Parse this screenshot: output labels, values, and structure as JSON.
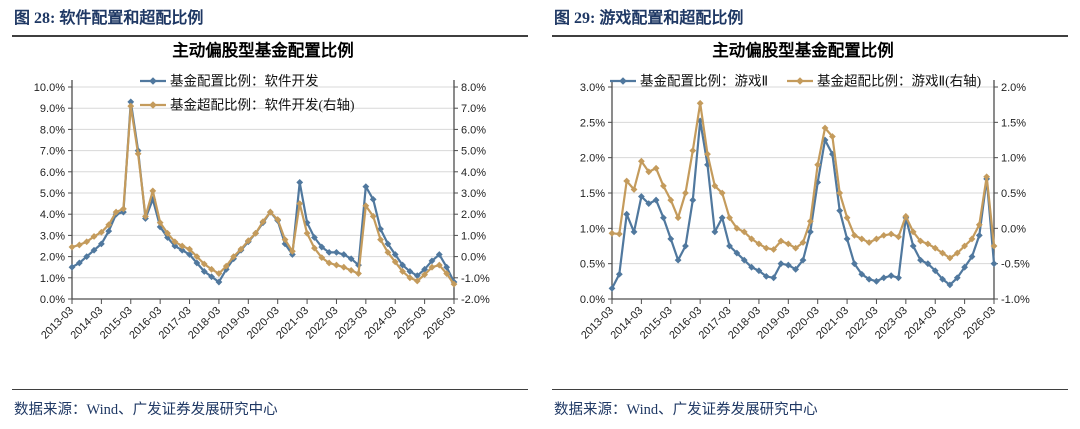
{
  "page": {
    "background": "#FFFFFF",
    "accent_navy": "#1F3864",
    "grid_color": "#D8D8D8",
    "axis_color": "#4d4d4d",
    "series_blue": "#50789E",
    "series_gold": "#C49B5C"
  },
  "figures": [
    {
      "figure_title": "图 28:  软件配置和超配比例",
      "source": "数据来源：Wind、广发证券发展研究中心"
    },
    {
      "figure_title": "图 29:  游戏配置和超配比例",
      "source": "数据来源：Wind、广发证券发展研究中心"
    }
  ],
  "chart_data": [
    {
      "type": "line",
      "title": "主动偏股型基金配置比例",
      "x_frequency": "quarterly",
      "x_tick_labels": [
        "2013-03",
        "2014-03",
        "2015-03",
        "2016-03",
        "2017-03",
        "2018-03",
        "2019-03",
        "2020-03",
        "2021-03",
        "2022-03",
        "2023-03",
        "2024-03",
        "2025-03",
        "2026-03"
      ],
      "left_axis": {
        "min": 0,
        "max": 10,
        "step": 1,
        "unit": "%"
      },
      "right_axis": {
        "min": -2,
        "max": 8,
        "step": 1,
        "unit": "%"
      },
      "grid": "horizontal",
      "legend": {
        "position": "top",
        "layout": "stacked"
      },
      "series": [
        {
          "name": "基金配置比例：软件开发",
          "axis": "left",
          "color": "#50789E",
          "marker": "diamond",
          "values": [
            1.5,
            1.7,
            2.0,
            2.3,
            2.6,
            3.2,
            4.0,
            4.1,
            9.3,
            7.0,
            3.8,
            4.7,
            3.4,
            2.9,
            2.5,
            2.3,
            2.1,
            1.7,
            1.3,
            1.05,
            0.8,
            1.4,
            1.9,
            2.3,
            2.7,
            3.1,
            3.6,
            4.1,
            3.7,
            2.6,
            2.1,
            5.5,
            3.6,
            2.9,
            2.45,
            2.2,
            2.2,
            2.1,
            1.9,
            1.6,
            5.3,
            4.7,
            3.3,
            2.6,
            2.1,
            1.6,
            1.3,
            1.1,
            1.4,
            1.8,
            2.1,
            1.5,
            0.8
          ]
        },
        {
          "name": "基金超配比例：软件开发(右轴)",
          "axis": "right",
          "color": "#C49B5C",
          "marker": "diamond",
          "values": [
            0.45,
            0.55,
            0.7,
            0.95,
            1.15,
            1.5,
            2.1,
            2.25,
            7.1,
            4.85,
            1.9,
            3.1,
            1.6,
            1.1,
            0.7,
            0.5,
            0.35,
            0.0,
            -0.35,
            -0.6,
            -0.8,
            -0.45,
            0.0,
            0.35,
            0.75,
            1.1,
            1.65,
            2.1,
            1.75,
            0.8,
            0.25,
            2.5,
            1.1,
            0.4,
            -0.05,
            -0.3,
            -0.4,
            -0.5,
            -0.65,
            -0.8,
            2.4,
            1.9,
            0.8,
            0.2,
            -0.25,
            -0.7,
            -1.0,
            -1.15,
            -0.85,
            -0.5,
            -0.4,
            -0.8,
            -1.3
          ]
        }
      ]
    },
    {
      "type": "line",
      "title": "主动偏股型基金配置比例",
      "x_frequency": "quarterly",
      "x_tick_labels": [
        "2013-03",
        "2014-03",
        "2015-03",
        "2016-03",
        "2017-03",
        "2018-03",
        "2019-03",
        "2020-03",
        "2021-03",
        "2022-03",
        "2023-03",
        "2024-03",
        "2025-03",
        "2026-03"
      ],
      "left_axis": {
        "min": 0,
        "max": 3,
        "step": 0.5,
        "unit": "%"
      },
      "right_axis": {
        "min": -1,
        "max": 2,
        "step": 0.5,
        "unit": "%"
      },
      "grid": "horizontal",
      "legend": {
        "position": "top",
        "layout": "row"
      },
      "series": [
        {
          "name": "基金配置比例：游戏Ⅱ",
          "axis": "left",
          "color": "#50789E",
          "marker": "diamond",
          "values": [
            0.15,
            0.35,
            1.2,
            0.95,
            1.45,
            1.35,
            1.4,
            1.15,
            0.85,
            0.55,
            0.75,
            1.4,
            2.52,
            1.9,
            0.95,
            1.15,
            0.75,
            0.65,
            0.55,
            0.45,
            0.4,
            0.32,
            0.3,
            0.5,
            0.48,
            0.42,
            0.55,
            0.95,
            1.65,
            2.25,
            2.05,
            1.25,
            0.85,
            0.5,
            0.35,
            0.28,
            0.25,
            0.3,
            0.33,
            0.3,
            1.15,
            0.75,
            0.55,
            0.5,
            0.4,
            0.28,
            0.2,
            0.3,
            0.45,
            0.6,
            0.9,
            1.7,
            0.5
          ]
        },
        {
          "name": "基金超配比例：游戏Ⅱ(右轴)",
          "axis": "right",
          "color": "#C49B5C",
          "marker": "diamond",
          "values": [
            -0.07,
            -0.08,
            0.67,
            0.55,
            0.95,
            0.8,
            0.85,
            0.6,
            0.4,
            0.15,
            0.5,
            1.1,
            1.77,
            1.05,
            0.6,
            0.5,
            0.15,
            0.0,
            -0.05,
            -0.15,
            -0.22,
            -0.28,
            -0.3,
            -0.18,
            -0.22,
            -0.28,
            -0.2,
            0.1,
            0.9,
            1.42,
            1.3,
            0.5,
            0.15,
            -0.1,
            -0.15,
            -0.2,
            -0.15,
            -0.1,
            -0.08,
            -0.12,
            0.17,
            -0.05,
            -0.18,
            -0.22,
            -0.28,
            -0.35,
            -0.42,
            -0.35,
            -0.25,
            -0.15,
            0.05,
            0.73,
            -0.25
          ]
        }
      ]
    }
  ]
}
